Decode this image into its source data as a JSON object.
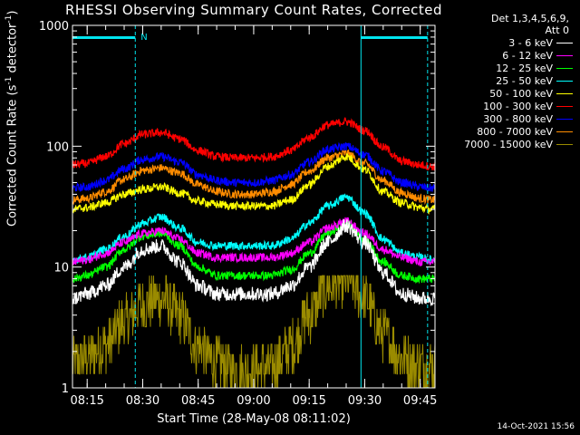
{
  "title": "RHESSI Observing Summary Count Rates, Corrected",
  "legend_header": [
    "Det 1,3,4,5,6,9,",
    "Att 0"
  ],
  "ylabel_text": "Corrected Count Rate (s",
  "ylabel_sup": "-1",
  "ylabel_text2": " detector",
  "ylabel_sup2": "-1",
  "ylabel_end": ")",
  "xlabel": "Start Time (28-May-08 08:11:02)",
  "timestamp": "14-Oct-2021 15:56",
  "flag_label": "N",
  "chart_data": {
    "type": "line",
    "title": "RHESSI Observing Summary Count Rates, Corrected",
    "xlabel": "Start Time (28-May-08 08:11:02)",
    "ylabel": "Corrected Count Rate (s^-1 detector^-1)",
    "yscale": "log",
    "ylim": [
      1,
      1000
    ],
    "xlim": [
      "08:11",
      "09:49"
    ],
    "x_ticks": [
      "08:15",
      "08:30",
      "08:45",
      "09:00",
      "09:15",
      "09:30",
      "09:45"
    ],
    "y_ticks": [
      "1",
      "10",
      "100",
      "1000"
    ],
    "legend_position": "top-right, outside plot",
    "grid": false,
    "night_boundaries": [
      "08:28",
      "09:29",
      "09:47"
    ],
    "saa_bar_intervals": [
      [
        "08:11",
        "08:28"
      ],
      [
        "09:29",
        "09:47"
      ]
    ],
    "x": [
      "08:11",
      "08:15",
      "08:20",
      "08:25",
      "08:30",
      "08:35",
      "08:40",
      "08:45",
      "08:50",
      "08:55",
      "09:00",
      "09:05",
      "09:10",
      "09:15",
      "09:20",
      "09:25",
      "09:30",
      "09:35",
      "09:40",
      "09:45",
      "09:48"
    ],
    "series": [
      {
        "name": "3 - 6 keV",
        "color": "#ffffff",
        "values": [
          5.5,
          6,
          7,
          10,
          14,
          15,
          11,
          7,
          6,
          6,
          6,
          6,
          7,
          10,
          16,
          22,
          16,
          9,
          6,
          5.5,
          5.5
        ]
      },
      {
        "name": "6 - 12 keV",
        "color": "#ff00ff",
        "values": [
          11,
          11.5,
          13,
          16,
          19,
          20,
          17,
          13,
          12,
          12,
          12,
          12,
          13,
          16,
          21,
          24,
          19,
          14,
          12,
          11,
          11
        ]
      },
      {
        "name": "12 - 25 keV",
        "color": "#00ff00",
        "values": [
          8,
          8.5,
          10,
          14,
          18,
          19,
          15,
          10,
          8.5,
          8.5,
          8.5,
          8.5,
          9.5,
          13,
          19,
          23,
          17,
          11,
          8.5,
          8,
          8
        ]
      },
      {
        "name": "25 - 50 keV",
        "color": "#00ffff",
        "values": [
          11.5,
          12,
          14,
          18,
          23,
          26,
          21,
          16,
          15,
          15,
          15,
          15,
          17,
          23,
          32,
          38,
          28,
          17,
          13,
          12,
          11.5
        ]
      },
      {
        "name": "50 - 100 keV",
        "color": "#ffff00",
        "values": [
          30,
          31,
          34,
          40,
          44,
          46,
          41,
          35,
          33,
          32,
          32,
          32,
          36,
          48,
          68,
          82,
          64,
          42,
          34,
          31,
          30
        ]
      },
      {
        "name": "100 - 300 keV",
        "color": "#ff0000",
        "values": [
          70,
          72,
          82,
          105,
          125,
          130,
          115,
          92,
          82,
          80,
          80,
          82,
          92,
          118,
          150,
          160,
          135,
          98,
          75,
          70,
          68
        ]
      },
      {
        "name": "300 - 800 keV",
        "color": "#0000ff",
        "values": [
          45,
          46,
          52,
          65,
          78,
          82,
          74,
          58,
          52,
          50,
          50,
          52,
          58,
          74,
          94,
          100,
          85,
          62,
          50,
          46,
          45
        ]
      },
      {
        "name": "800 - 7000 keV",
        "color": "#ff8c00",
        "values": [
          36,
          37,
          42,
          53,
          63,
          66,
          60,
          48,
          42,
          40,
          40,
          42,
          48,
          62,
          80,
          87,
          72,
          52,
          41,
          37,
          36
        ]
      },
      {
        "name": "7000 - 15000 keV",
        "color": "#9a8b00",
        "values": [
          1.6,
          1.8,
          2.2,
          3.5,
          5,
          5.5,
          4,
          2.2,
          1.6,
          1.4,
          1.4,
          1.5,
          2.2,
          4,
          7,
          8,
          5.5,
          2.8,
          1.8,
          1.5,
          1.5
        ]
      }
    ]
  }
}
